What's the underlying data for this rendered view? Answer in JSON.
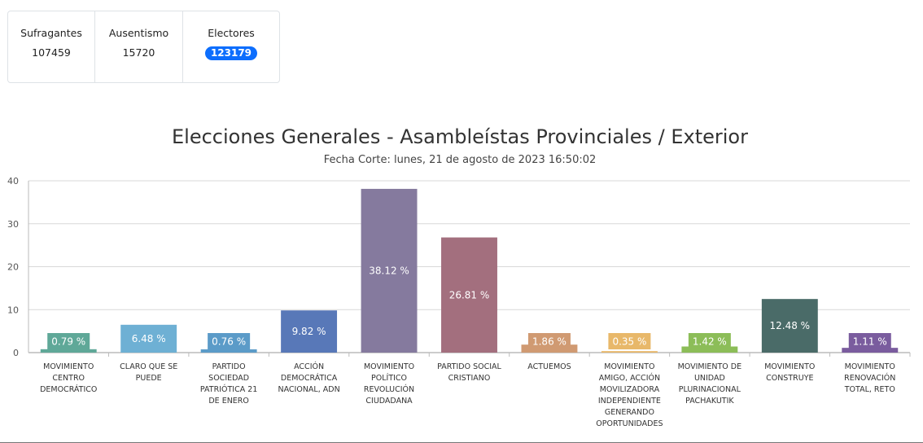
{
  "stats": {
    "sufragantes": {
      "label": "Sufragantes",
      "value": "107459"
    },
    "ausentismo": {
      "label": "Ausentismo",
      "value": "15720"
    },
    "electores": {
      "label": "Electores",
      "value": "123179"
    }
  },
  "chart_data": {
    "type": "bar",
    "title": "Elecciones Generales - Asambleístas Provinciales / Exterior",
    "subtitle": "Fecha Corte: lunes, 21 de agosto de 2023 16:50:02",
    "ylim": [
      0,
      40
    ],
    "yticks": [
      0,
      10,
      20,
      30,
      40
    ],
    "grid": true,
    "categories": [
      [
        "MOVIMIENTO",
        "CENTRO",
        "DEMOCRÁTICO"
      ],
      [
        "CLARO QUE SE",
        "PUEDE"
      ],
      [
        "PARTIDO",
        "SOCIEDAD",
        "PATRIÓTICA 21",
        "DE ENERO"
      ],
      [
        "ACCIÓN",
        "DEMOCRÁTICA",
        "NACIONAL, ADN"
      ],
      [
        "MOVIMIENTO",
        "POLÍTICO",
        "REVOLUCIÓN",
        "CIUDADANA"
      ],
      [
        "PARTIDO SOCIAL",
        "CRISTIANO"
      ],
      [
        "ACTUEMOS"
      ],
      [
        "MOVIMIENTO",
        "AMIGO, ACCIÓN",
        "MOVILIZADORA",
        "INDEPENDIENTE",
        "GENERANDO",
        "OPORTUNIDADES"
      ],
      [
        "MOVIMIENTO DE",
        "UNIDAD",
        "PLURINACIONAL",
        "PACHAKUTIK"
      ],
      [
        "MOVIMIENTO",
        "CONSTRUYE"
      ],
      [
        "MOVIMIENTO",
        "RENOVACIÓN",
        "TOTAL, RETO"
      ]
    ],
    "values": [
      0.79,
      6.48,
      0.76,
      9.82,
      38.12,
      26.81,
      1.86,
      0.35,
      1.42,
      12.48,
      1.11
    ],
    "data_labels": [
      "0.79 %",
      "6.48 %",
      "0.76 %",
      "9.82 %",
      "38.12 %",
      "26.81 %",
      "1.86 %",
      "0.35 %",
      "1.42 %",
      "12.48 %",
      "1.11 %"
    ],
    "colors": [
      "#5fa898",
      "#6eb0d4",
      "#5b9bc8",
      "#5878b8",
      "#857a9e",
      "#a36f7e",
      "#d09a72",
      "#e8b86a",
      "#8cbd58",
      "#4a6b68",
      "#7a5c9e"
    ]
  }
}
